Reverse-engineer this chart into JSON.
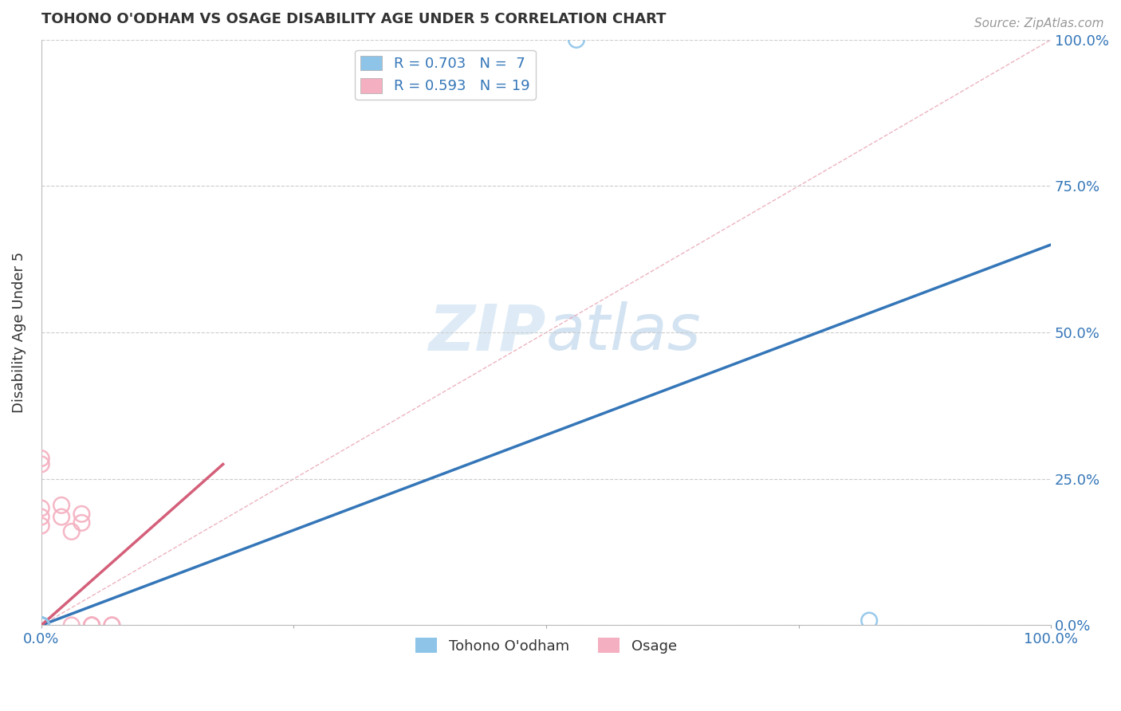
{
  "title": "TOHONO O'ODHAM VS OSAGE DISABILITY AGE UNDER 5 CORRELATION CHART",
  "source": "Source: ZipAtlas.com",
  "ylabel_label": "Disability Age Under 5",
  "legend_labels": [
    "Tohono O'odham",
    "Osage"
  ],
  "legend_R": [
    0.703,
    0.593
  ],
  "legend_N": [
    7,
    19
  ],
  "blue_scatter_x": [
    0.0,
    0.0,
    0.0,
    0.0,
    0.0,
    0.82,
    0.53
  ],
  "blue_scatter_y": [
    0.0,
    0.0,
    0.0,
    0.0,
    0.0,
    0.008,
    1.0
  ],
  "pink_scatter_x": [
    0.0,
    0.0,
    0.0,
    0.0,
    0.0,
    0.0,
    0.0,
    0.0,
    0.02,
    0.02,
    0.03,
    0.03,
    0.04,
    0.04,
    0.05,
    0.05,
    0.05,
    0.07,
    0.07
  ],
  "pink_scatter_y": [
    0.275,
    0.285,
    0.0,
    0.0,
    0.185,
    0.17,
    0.2,
    0.0,
    0.185,
    0.205,
    0.16,
    0.0,
    0.175,
    0.19,
    0.0,
    0.0,
    0.0,
    0.0,
    0.0
  ],
  "blue_line_x": [
    0.0,
    1.0
  ],
  "blue_line_y": [
    0.0,
    0.65
  ],
  "pink_line_x": [
    0.0,
    0.18
  ],
  "pink_line_y": [
    0.0,
    0.275
  ],
  "diag_line_x": [
    0.0,
    1.0
  ],
  "diag_line_y": [
    0.0,
    1.0
  ],
  "blue_color": "#8ec4e8",
  "pink_color": "#f4afc0",
  "blue_line_color": "#3476b8",
  "pink_line_color": "#d45f7a",
  "diag_color": "#e8a0b0",
  "grid_color": "#cccccc",
  "title_color": "#333333",
  "axis_label_color": "#3476b8",
  "source_color": "#999999",
  "xlim": [
    0.0,
    1.0
  ],
  "ylim": [
    0.0,
    1.0
  ],
  "xticks": [
    0.0,
    0.25,
    0.5,
    0.75,
    1.0
  ],
  "yticks": [
    0.0,
    0.25,
    0.5,
    0.75,
    1.0
  ],
  "xtick_labels": [
    "0.0%",
    "",
    "",
    "",
    "100.0%"
  ],
  "ytick_labels_right": [
    "0.0%",
    "25.0%",
    "50.0%",
    "75.0%",
    "100.0%"
  ],
  "background_color": "#ffffff",
  "watermark_zip": "ZIP",
  "watermark_atlas": "atlas",
  "watermark_color_zip": "#cfe0f0",
  "watermark_color_atlas": "#b8d0e8"
}
